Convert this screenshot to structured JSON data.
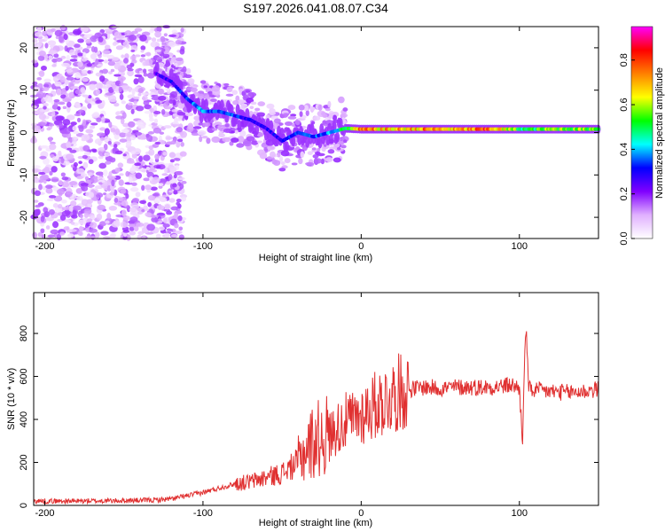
{
  "chart_data": [
    {
      "type": "heatmap",
      "title": "S197.2026.041.08.07.C34",
      "xlabel": "Height of straight line (km)",
      "ylabel": "Frequency (Hz)",
      "xlim": [
        -207,
        150
      ],
      "ylim": [
        -25,
        25
      ],
      "xticks": [
        -200,
        -100,
        0,
        100
      ],
      "xtick_labels": [
        "-200",
        "-100",
        "0",
        "100"
      ],
      "yticks": [
        -20,
        -10,
        0,
        10,
        20
      ],
      "ytick_labels": [
        "-20",
        "-10",
        "0",
        "10",
        "20"
      ],
      "colorbar": {
        "label": "Normalized spectral amplitude",
        "range": [
          0,
          0.95
        ],
        "ticks": [
          0.0,
          0.2,
          0.4,
          0.6,
          0.8
        ],
        "tick_labels": [
          "0.0",
          "0.2",
          "0.4",
          "0.6",
          "0.8"
        ],
        "colors": [
          "#ffffff",
          "#e0b0ff",
          "#8000ff",
          "#0000ff",
          "#00ffff",
          "#00ff00",
          "#ffff00",
          "#ff8000",
          "#ff0000",
          "#ff00ff"
        ]
      },
      "ridge": [
        {
          "x": -130,
          "y": 14,
          "amp": 0.25
        },
        {
          "x": -120,
          "y": 12,
          "amp": 0.3
        },
        {
          "x": -110,
          "y": 8,
          "amp": 0.35
        },
        {
          "x": -100,
          "y": 5,
          "amp": 0.4
        },
        {
          "x": -90,
          "y": 5,
          "amp": 0.35
        },
        {
          "x": -80,
          "y": 4,
          "amp": 0.35
        },
        {
          "x": -70,
          "y": 3,
          "amp": 0.3
        },
        {
          "x": -60,
          "y": 1,
          "amp": 0.3
        },
        {
          "x": -50,
          "y": -2,
          "amp": 0.3
        },
        {
          "x": -40,
          "y": 0,
          "amp": 0.35
        },
        {
          "x": -30,
          "y": -1,
          "amp": 0.35
        },
        {
          "x": -20,
          "y": 0,
          "amp": 0.4
        },
        {
          "x": -10,
          "y": 1,
          "amp": 0.5
        },
        {
          "x": 0,
          "y": 0.8,
          "amp": 0.75
        },
        {
          "x": 20,
          "y": 0.8,
          "amp": 0.7
        },
        {
          "x": 40,
          "y": 0.8,
          "amp": 0.75
        },
        {
          "x": 60,
          "y": 0.8,
          "amp": 0.7
        },
        {
          "x": 80,
          "y": 0.8,
          "amp": 0.8
        },
        {
          "x": 95,
          "y": 0.8,
          "amp": 0.6
        },
        {
          "x": 105,
          "y": 0.8,
          "amp": 0.5
        },
        {
          "x": 120,
          "y": 0.8,
          "amp": 0.6
        },
        {
          "x": 150,
          "y": 0.8,
          "amp": 0.6
        }
      ]
    },
    {
      "type": "line",
      "xlabel": "Height of straight line (km)",
      "ylabel": "SNR (10 * v/v)",
      "xlim": [
        -207,
        150
      ],
      "ylim": [
        0,
        990
      ],
      "xticks": [
        -200,
        -100,
        0,
        100
      ],
      "xtick_labels": [
        "-200",
        "-100",
        "0",
        "100"
      ],
      "yticks": [
        0,
        200,
        400,
        600,
        800
      ],
      "ytick_labels": [
        "0",
        "200",
        "400",
        "600",
        "800"
      ],
      "series": [
        {
          "name": "SNR",
          "color": "#e03030",
          "x": [
            -207,
            -180,
            -150,
            -130,
            -120,
            -110,
            -100,
            -90,
            -80,
            -70,
            -60,
            -50,
            -40,
            -35,
            -30,
            -25,
            -20,
            -15,
            -10,
            -5,
            0,
            5,
            10,
            15,
            20,
            25,
            30,
            40,
            50,
            60,
            70,
            80,
            90,
            95,
            100,
            102,
            104,
            106,
            110,
            120,
            130,
            140,
            150
          ],
          "y": [
            20,
            20,
            22,
            25,
            30,
            45,
            60,
            80,
            100,
            110,
            130,
            150,
            200,
            260,
            300,
            320,
            330,
            360,
            390,
            400,
            420,
            450,
            470,
            490,
            510,
            530,
            540,
            550,
            545,
            550,
            550,
            550,
            555,
            560,
            545,
            300,
            850,
            540,
            535,
            530,
            525,
            530,
            540
          ]
        }
      ]
    }
  ]
}
